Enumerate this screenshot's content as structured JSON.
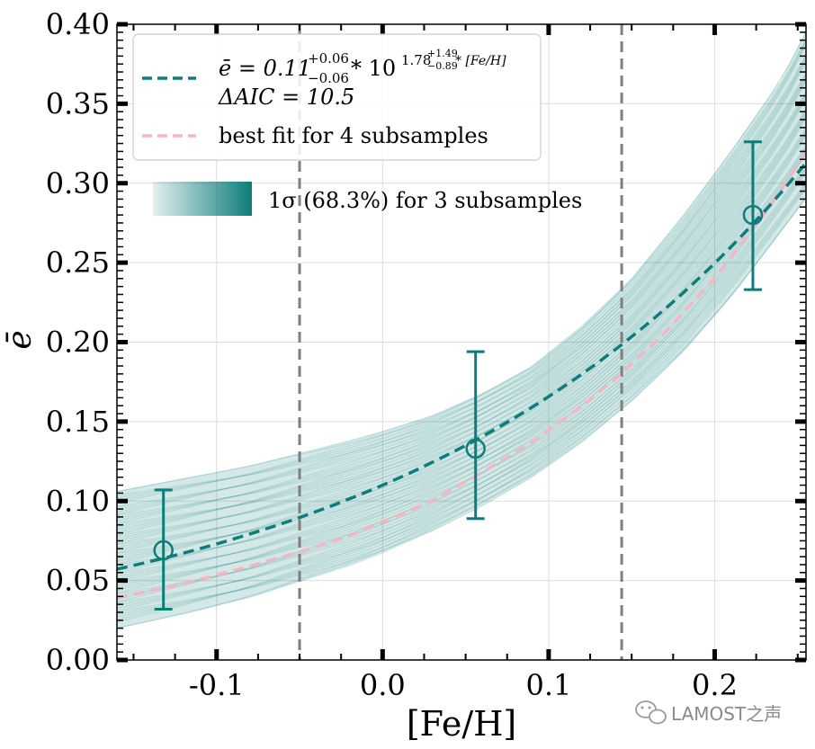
{
  "chart_data": {
    "type": "line",
    "xlabel": "[Fe/H]",
    "ylabel": "ē",
    "xlim": [
      -0.16,
      0.255
    ],
    "ylim": [
      0.0,
      0.4
    ],
    "x_ticks": [
      -0.1,
      0.0,
      0.1,
      0.2
    ],
    "x_tick_labels": [
      "-0.1",
      "0.0",
      "0.1",
      "0.2"
    ],
    "y_ticks": [
      0.0,
      0.05,
      0.1,
      0.15,
      0.2,
      0.25,
      0.3,
      0.35,
      0.4
    ],
    "y_tick_labels": [
      "0.00",
      "0.05",
      "0.10",
      "0.15",
      "0.20",
      "0.25",
      "0.30",
      "0.35",
      "0.40"
    ],
    "grid": true,
    "vertical_lines_x": [
      -0.05,
      0.144
    ],
    "fit_3_subsamples": {
      "amplitude": 0.11,
      "amplitude_err_plus": 0.06,
      "amplitude_err_minus": 0.06,
      "exponent": 1.78,
      "exponent_err_plus": 1.49,
      "exponent_err_minus": 0.89,
      "color": "#0e7d7a"
    },
    "fit_4_subsamples": {
      "x": [
        -0.16,
        -0.12,
        -0.08,
        -0.05,
        -0.02,
        0.0,
        0.03,
        0.06,
        0.09,
        0.12,
        0.144,
        0.17,
        0.2,
        0.23,
        0.255
      ],
      "y": [
        0.039,
        0.048,
        0.059,
        0.068,
        0.078,
        0.087,
        0.1,
        0.118,
        0.137,
        0.16,
        0.18,
        0.206,
        0.24,
        0.281,
        0.319
      ],
      "color": "#f4b6c2"
    },
    "band_1sigma": {
      "x": [
        -0.16,
        -0.12,
        -0.08,
        -0.05,
        -0.02,
        0.0,
        0.03,
        0.06,
        0.09,
        0.12,
        0.15,
        0.18,
        0.21,
        0.24,
        0.255
      ],
      "lower": [
        0.02,
        0.029,
        0.039,
        0.049,
        0.059,
        0.067,
        0.081,
        0.097,
        0.115,
        0.137,
        0.163,
        0.193,
        0.229,
        0.27,
        0.291
      ],
      "upper": [
        0.106,
        0.114,
        0.122,
        0.13,
        0.138,
        0.144,
        0.154,
        0.168,
        0.185,
        0.21,
        0.24,
        0.278,
        0.32,
        0.365,
        0.395
      ],
      "color": "#0e7d7a"
    },
    "points": [
      {
        "x": -0.132,
        "y": 0.069,
        "y_err_low": 0.037,
        "y_err_high": 0.038
      },
      {
        "x": 0.056,
        "y": 0.133,
        "y_err_low": 0.044,
        "y_err_high": 0.061
      },
      {
        "x": 0.223,
        "y": 0.28,
        "y_err_low": 0.047,
        "y_err_high": 0.046
      }
    ],
    "legend": {
      "location": "upper-left",
      "entries": [
        {
          "label_text": "ē = 0.11 ^{+0.06}_{−0.06} * 10^{1.78 ^{+1.49}_{−0.89} * [Fe/H]}",
          "subline": "ΔAIC = 10.5"
        },
        {
          "label_text": "best fit for 4 subsamples"
        }
      ]
    },
    "band_legend_label": "1σ (68.3%) for 3 subsamples"
  },
  "legend_text": {
    "fit_prefix": "ē = 0.11",
    "amp_plus": "+0.06",
    "amp_minus": "−0.06",
    "mult_base": "* 10",
    "exp_main": "1.78",
    "exp_plus": "+1.49",
    "exp_minus": "−0.89",
    "exp_suffix": "* [Fe/H]",
    "aic": "ΔAIC = 10.5",
    "best_fit": "best fit for 4 subsamples",
    "band": "1σ (68.3%) for 3 subsamples"
  },
  "watermark": {
    "text": "LAMOST之声",
    "icon": "wechat-icon"
  }
}
